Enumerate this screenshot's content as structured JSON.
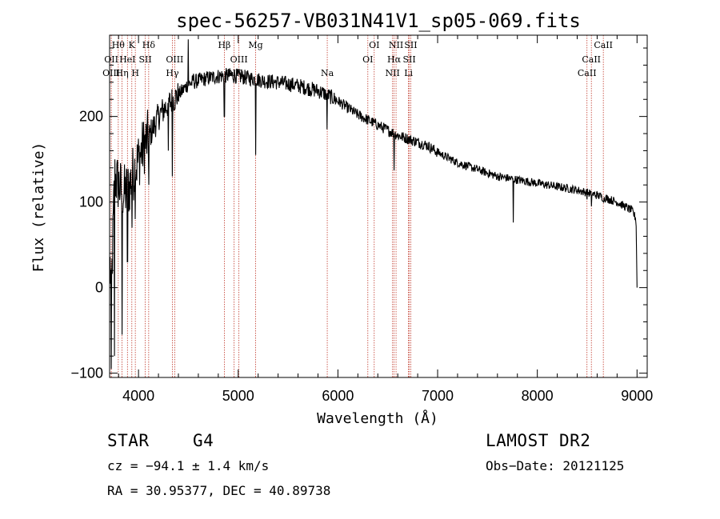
{
  "chart_data": {
    "type": "line",
    "title": "spec-56257-VB031N41V1_sp05-069.fits",
    "xlabel": "Wavelength (Å)",
    "ylabel": "Flux (relative)",
    "xlim": [
      3700,
      9100
    ],
    "ylim": [
      -105,
      295
    ],
    "xticks": [
      4000,
      5000,
      6000,
      7000,
      8000,
      9000
    ],
    "yticks": [
      -100,
      0,
      100,
      200
    ],
    "grid": false,
    "legend": "none",
    "spectrum_profile": {
      "x": [
        3700,
        3730,
        3760,
        3800,
        3850,
        3900,
        3950,
        4000,
        4050,
        4100,
        4200,
        4300,
        4400,
        4500,
        4600,
        4700,
        4800,
        4900,
        5000,
        5100,
        5200,
        5300,
        5400,
        5500,
        5600,
        5700,
        5800,
        5900,
        6000,
        6100,
        6200,
        6300,
        6400,
        6500,
        6600,
        6700,
        6800,
        6900,
        7000,
        7200,
        7400,
        7600,
        7800,
        8000,
        8200,
        8400,
        8600,
        8800,
        8950,
        8990,
        9000
      ],
      "y": [
        50,
        0,
        130,
        120,
        110,
        115,
        135,
        150,
        165,
        175,
        200,
        215,
        225,
        238,
        242,
        245,
        247,
        248,
        247,
        245,
        243,
        241,
        240,
        238,
        236,
        233,
        230,
        225,
        218,
        210,
        202,
        196,
        190,
        184,
        178,
        174,
        170,
        166,
        158,
        146,
        138,
        130,
        126,
        122,
        118,
        114,
        108,
        100,
        90,
        80,
        0
      ]
    },
    "absorption_features": [
      {
        "x": 3728,
        "y": -95
      },
      {
        "x": 3760,
        "y": -80
      },
      {
        "x": 3835,
        "y": -55
      },
      {
        "x": 3889,
        "y": 30
      },
      {
        "x": 3934,
        "y": 70
      },
      {
        "x": 3968,
        "y": 80
      },
      {
        "x": 4102,
        "y": 120
      },
      {
        "x": 4300,
        "y": 160
      },
      {
        "x": 4340,
        "y": 130
      },
      {
        "x": 4861,
        "y": 200
      },
      {
        "x": 5175,
        "y": 155
      },
      {
        "x": 5890,
        "y": 185
      },
      {
        "x": 6563,
        "y": 137
      },
      {
        "x": 7760,
        "y": 76
      },
      {
        "x": 8498,
        "y": 103
      },
      {
        "x": 8542,
        "y": 95
      },
      {
        "x": 8662,
        "y": 100
      }
    ],
    "emission_features": [
      {
        "x": 4500,
        "y": 290
      },
      {
        "x": 4550,
        "y": 250
      }
    ],
    "line_markers": [
      {
        "label": "Hθ",
        "x": 3797,
        "row": 0
      },
      {
        "label": "OII",
        "x": 3727,
        "row": 1
      },
      {
        "label": "OIII",
        "x": 3727,
        "row": 2
      },
      {
        "label": "K",
        "x": 3933,
        "row": 0
      },
      {
        "label": "HeI",
        "x": 3889,
        "row": 1
      },
      {
        "label": "Hη",
        "x": 3835,
        "row": 2
      },
      {
        "label": "Hδ",
        "x": 4102,
        "row": 0
      },
      {
        "label": "SII",
        "x": 4068,
        "row": 1
      },
      {
        "label": "H",
        "x": 3968,
        "row": 2
      },
      {
        "label": "OIII",
        "x": 4363,
        "row": 1
      },
      {
        "label": "Hγ",
        "x": 4340,
        "row": 2
      },
      {
        "label": "Hβ",
        "x": 4861,
        "row": 0
      },
      {
        "label": "OIII",
        "x": 5007,
        "row": 1
      },
      {
        "label": "OIII",
        "x": 4959,
        "row": 2
      },
      {
        "label": "Mg",
        "x": 5175,
        "row": 0
      },
      {
        "label": "Na",
        "x": 5893,
        "row": 2
      },
      {
        "label": "OI",
        "x": 6364,
        "row": 0
      },
      {
        "label": "OI",
        "x": 6300,
        "row": 1
      },
      {
        "label": "NII",
        "x": 6583,
        "row": 0
      },
      {
        "label": "Hα",
        "x": 6563,
        "row": 1
      },
      {
        "label": "NII",
        "x": 6548,
        "row": 2
      },
      {
        "label": "SII",
        "x": 6731,
        "row": 0
      },
      {
        "label": "SII",
        "x": 6716,
        "row": 1
      },
      {
        "label": "Li",
        "x": 6708,
        "row": 2
      },
      {
        "label": "CaII",
        "x": 8662,
        "row": 0
      },
      {
        "label": "CaII",
        "x": 8542,
        "row": 1
      },
      {
        "label": "CaII",
        "x": 8498,
        "row": 2
      }
    ]
  },
  "info": {
    "class_label": "STAR",
    "subclass": "G4",
    "survey": "LAMOST DR2",
    "cz": "cz = −94.1 ± 1.4 km/s",
    "obs_date": "Obs−Date: 20121125",
    "coords": "RA =  30.95377, DEC =  40.89738"
  },
  "colors": {
    "spectrum": "#000000",
    "marker_line": "#c0392b"
  }
}
